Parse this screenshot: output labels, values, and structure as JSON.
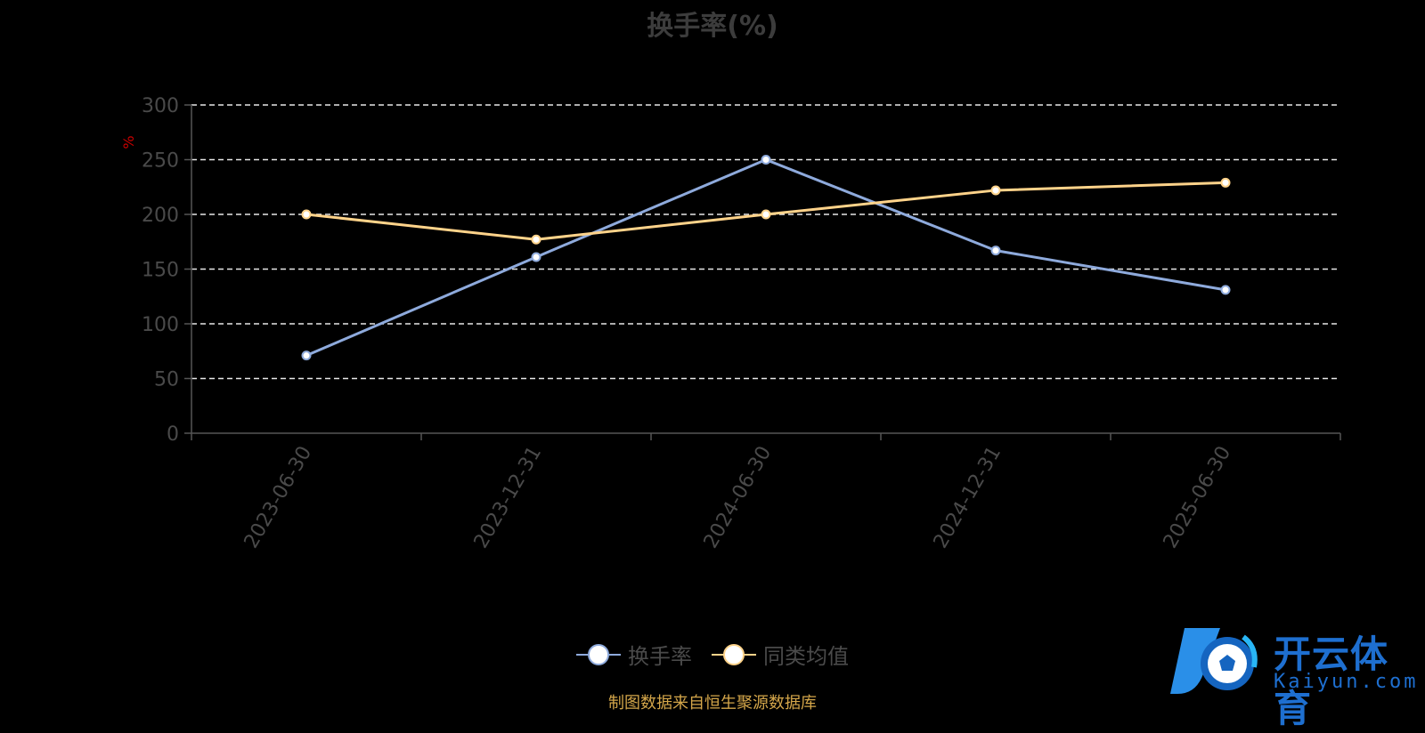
{
  "chart_data": {
    "type": "line",
    "title": "换手率(%)",
    "ylabel": "%",
    "ylim": [
      0,
      300
    ],
    "yticks": [
      0,
      50,
      100,
      150,
      200,
      250,
      300
    ],
    "categories": [
      "2023-06-30",
      "2023-12-31",
      "2024-06-30",
      "2024-12-31",
      "2025-06-30"
    ],
    "series": [
      {
        "name": "换手率",
        "color": "#8eaadc",
        "values": [
          71,
          161,
          250,
          167,
          131
        ]
      },
      {
        "name": "同类均值",
        "color": "#ffd38a",
        "values": [
          200,
          177,
          200,
          222,
          229
        ]
      }
    ],
    "grid": true,
    "legend_position": "bottom-center"
  },
  "source_text": "制图数据来自恒生聚源数据库",
  "logo": {
    "text": "开云体育",
    "subtext": "Kaiyun.com"
  }
}
